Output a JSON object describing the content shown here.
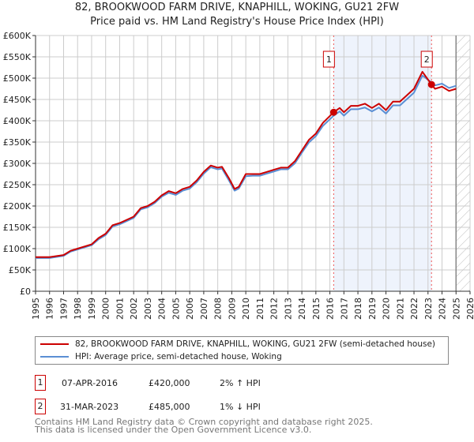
{
  "title": "82, BROOKWOOD FARM DRIVE, KNAPHILL, WOKING, GU21 2FW",
  "subtitle": "Price paid vs. HM Land Registry's House Price Index (HPI)",
  "chart_data": {
    "type": "line",
    "xlim": [
      1995,
      2026
    ],
    "ylim": [
      0,
      600000
    ],
    "x_ticks": [
      "1995",
      "1996",
      "1997",
      "1998",
      "1999",
      "2000",
      "2001",
      "2002",
      "2003",
      "2004",
      "2005",
      "2006",
      "2007",
      "2008",
      "2009",
      "2010",
      "2011",
      "2012",
      "2013",
      "2014",
      "2015",
      "2016",
      "2017",
      "2018",
      "2019",
      "2020",
      "2021",
      "2022",
      "2023",
      "2024",
      "2025",
      "2026"
    ],
    "y_ticks": [
      {
        "v": 0,
        "label": "£0"
      },
      {
        "v": 50000,
        "label": "£50K"
      },
      {
        "v": 100000,
        "label": "£100K"
      },
      {
        "v": 150000,
        "label": "£150K"
      },
      {
        "v": 200000,
        "label": "£200K"
      },
      {
        "v": 250000,
        "label": "£250K"
      },
      {
        "v": 300000,
        "label": "£300K"
      },
      {
        "v": 350000,
        "label": "£350K"
      },
      {
        "v": 400000,
        "label": "£400K"
      },
      {
        "v": 450000,
        "label": "£450K"
      },
      {
        "v": 500000,
        "label": "£500K"
      },
      {
        "v": 550000,
        "label": "£550K"
      },
      {
        "v": 600000,
        "label": "£600K"
      }
    ],
    "grid": true,
    "shaded_range": [
      2016.27,
      2023.25
    ],
    "forecast_hatch_from": 2025,
    "series": [
      {
        "name": "82, BROOKWOOD FARM DRIVE, KNAPHILL, WOKING, GU21 2FW (semi-detached house)",
        "color": "#cc0000",
        "x": [
          1995,
          1996,
          1997,
          1997.5,
          1998,
          1999,
          1999.5,
          2000,
          2000.5,
          2001,
          2002,
          2002.5,
          2003,
          2003.5,
          2004,
          2004.5,
          2005,
          2005.5,
          2006,
          2006.5,
          2007,
          2007.5,
          2008,
          2008.3,
          2008.8,
          2009.2,
          2009.5,
          2010,
          2010.5,
          2011,
          2011.5,
          2012,
          2012.5,
          2013,
          2013.5,
          2014,
          2014.5,
          2015,
          2015.5,
          2016.27,
          2016.7,
          2017,
          2017.5,
          2018,
          2018.5,
          2019,
          2019.5,
          2020,
          2020.5,
          2021,
          2021.5,
          2022,
          2022.6,
          2023.25,
          2023.5,
          2024,
          2024.5,
          2025
        ],
        "y": [
          80000,
          80000,
          85000,
          95000,
          100000,
          110000,
          125000,
          135000,
          155000,
          160000,
          175000,
          195000,
          200000,
          210000,
          225000,
          235000,
          230000,
          240000,
          245000,
          260000,
          280000,
          295000,
          290000,
          292000,
          265000,
          240000,
          245000,
          275000,
          275000,
          275000,
          280000,
          285000,
          290000,
          290000,
          305000,
          330000,
          355000,
          370000,
          395000,
          420000,
          430000,
          420000,
          435000,
          435000,
          440000,
          430000,
          440000,
          425000,
          445000,
          445000,
          460000,
          475000,
          515000,
          485000,
          475000,
          480000,
          470000,
          475000
        ]
      },
      {
        "name": "HPI: Average price, semi-detached house, Woking",
        "color": "#5b8fd4",
        "x": [
          1995,
          1996,
          1997,
          1997.5,
          1998,
          1999,
          1999.5,
          2000,
          2000.5,
          2001,
          2002,
          2002.5,
          2003,
          2003.5,
          2004,
          2004.5,
          2005,
          2005.5,
          2006,
          2006.5,
          2007,
          2007.5,
          2008,
          2008.3,
          2008.8,
          2009.2,
          2009.5,
          2010,
          2010.5,
          2011,
          2011.5,
          2012,
          2012.5,
          2013,
          2013.5,
          2014,
          2014.5,
          2015,
          2015.5,
          2016.27,
          2016.7,
          2017,
          2017.5,
          2018,
          2018.5,
          2019,
          2019.5,
          2020,
          2020.5,
          2021,
          2021.5,
          2022,
          2022.6,
          2023.25,
          2023.5,
          2024,
          2024.5,
          2025
        ],
        "y": [
          78000,
          78000,
          83000,
          93000,
          98000,
          108000,
          122000,
          132000,
          152000,
          157000,
          172000,
          192000,
          197000,
          207000,
          222000,
          231000,
          226000,
          236000,
          241000,
          256000,
          276000,
          291000,
          286000,
          288000,
          260000,
          236000,
          241000,
          270000,
          271000,
          271000,
          276000,
          281000,
          286000,
          286000,
          300000,
          325000,
          349000,
          364000,
          388000,
          412000,
          422000,
          412000,
          427000,
          427000,
          431000,
          422000,
          431000,
          417000,
          436000,
          436000,
          451000,
          466000,
          506000,
          490000,
          483000,
          487000,
          477000,
          482000
        ]
      }
    ],
    "annotations": [
      {
        "label": "1",
        "x": 2016.27,
        "y": 420000
      },
      {
        "label": "2",
        "x": 2023.25,
        "y": 485000
      }
    ]
  },
  "legend": {
    "items": [
      "82, BROOKWOOD FARM DRIVE, KNAPHILL, WOKING, GU21 2FW (semi-detached house)",
      "HPI: Average price, semi-detached house, Woking"
    ]
  },
  "transactions": [
    {
      "num": "1",
      "date": "07-APR-2016",
      "price": "£420,000",
      "hpi": "2% ↑ HPI"
    },
    {
      "num": "2",
      "date": "31-MAR-2023",
      "price": "£485,000",
      "hpi": "1% ↓ HPI"
    }
  ],
  "footer": [
    "Contains HM Land Registry data © Crown copyright and database right 2025.",
    "This data is licensed under the Open Government Licence v3.0."
  ]
}
